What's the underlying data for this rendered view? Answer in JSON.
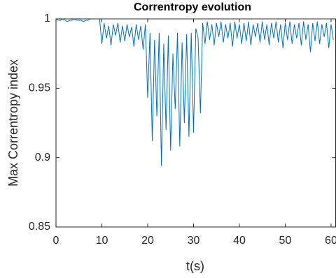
{
  "chart_data": {
    "type": "line",
    "title": "Correntropy evolution",
    "xlabel": "t(s)",
    "ylabel": "Max Correntropy index",
    "color": "#0072bd",
    "x": [
      0,
      0.5,
      1,
      1.5,
      2,
      2.5,
      3,
      3.5,
      4,
      4.5,
      5,
      5.5,
      6,
      6.5,
      7,
      7.5,
      8,
      8.5,
      9,
      9.5,
      10,
      10.5,
      11,
      11.5,
      12,
      12.5,
      13,
      13.5,
      14,
      14.5,
      15,
      15.5,
      16,
      16.5,
      17,
      17.5,
      18,
      18.5,
      19,
      19.5,
      20,
      20.5,
      21,
      21.5,
      22,
      22.5,
      23,
      23.5,
      24,
      24.5,
      25,
      25.5,
      26,
      26.5,
      27,
      27.5,
      28,
      28.5,
      29,
      29.5,
      30,
      30.5,
      31,
      31.5,
      32,
      32.5,
      33,
      33.5,
      34,
      34.5,
      35,
      35.5,
      36,
      36.5,
      37,
      37.5,
      38,
      38.5,
      39,
      39.5,
      40,
      40.5,
      41,
      41.5,
      42,
      42.5,
      43,
      43.5,
      44,
      44.5,
      45,
      45.5,
      46,
      46.5,
      47,
      47.5,
      48,
      48.5,
      49,
      49.5,
      50,
      50.5,
      51,
      51.5,
      52,
      52.5,
      53,
      53.5,
      54,
      54.5,
      55,
      55.5,
      56,
      56.5,
      57,
      57.5,
      58,
      58.5,
      59,
      59.5,
      60,
      60.5
    ],
    "values": [
      1,
      0.999,
      0.999,
      1,
      0.999,
      0.998,
      0.999,
      0.999,
      1,
      0.999,
      0.999,
      0.999,
      0.998,
      0.999,
      0.999,
      1,
      1,
      1,
      1,
      1,
      0.982,
      0.997,
      0.986,
      0.995,
      0.981,
      0.996,
      0.988,
      0.997,
      0.983,
      0.995,
      0.984,
      0.996,
      0.987,
      0.994,
      0.98,
      0.996,
      0.985,
      0.995,
      0.978,
      0.996,
      0.943,
      0.99,
      0.912,
      0.985,
      0.93,
      0.99,
      0.894,
      0.982,
      0.92,
      0.988,
      0.905,
      0.975,
      0.935,
      0.99,
      0.908,
      0.983,
      0.925,
      0.989,
      0.915,
      0.99,
      0.918,
      0.993,
      0.986,
      0.932,
      0.997,
      0.982,
      0.998,
      0.985,
      0.996,
      0.981,
      0.997,
      0.987,
      0.998,
      0.983,
      0.996,
      0.986,
      0.997,
      0.98,
      0.998,
      0.986,
      0.996,
      0.982,
      0.997,
      0.984,
      0.998,
      0.981,
      0.996,
      0.987,
      0.997,
      0.983,
      0.998,
      0.985,
      0.996,
      0.981,
      0.997,
      0.986,
      0.998,
      0.983,
      0.996,
      0.979,
      0.997,
      0.985,
      0.998,
      0.982,
      0.996,
      0.986,
      0.997,
      0.981,
      0.998,
      0.985,
      0.996,
      0.976,
      0.997,
      0.984,
      0.998,
      0.982,
      0.996,
      0.987,
      0.997,
      0.979,
      0.996,
      0.985
    ],
    "xlim": [
      0,
      61
    ],
    "ylim": [
      0.85,
      1
    ],
    "xticks": [
      0,
      10,
      20,
      30,
      40,
      50,
      60
    ],
    "yticks": [
      0.85,
      0.9,
      0.95,
      1
    ]
  }
}
